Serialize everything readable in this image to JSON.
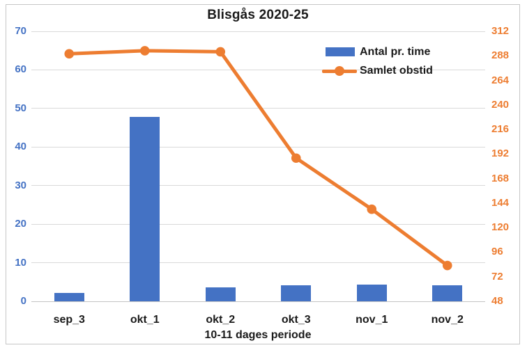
{
  "chart_data": {
    "type": "combo",
    "title": "Blisgås 2020-25",
    "xlabel": "10-11 dages periode",
    "categories": [
      "sep_3",
      "okt_1",
      "okt_2",
      "okt_3",
      "nov_1",
      "nov_2"
    ],
    "series": [
      {
        "name": "Antal pr. time",
        "type": "bar",
        "axis": "left",
        "color": "#4472C4",
        "values": [
          2.1,
          47.8,
          3.6,
          4.2,
          4.4,
          4.2
        ]
      },
      {
        "name": "Samlet obstid",
        "type": "line",
        "axis": "right",
        "color": "#ED7D31",
        "values": [
          290,
          293,
          292,
          188,
          138,
          83
        ]
      }
    ],
    "left_axis": {
      "min": 0,
      "max": 70,
      "step": 10,
      "tick_color": "#4472C4"
    },
    "right_axis": {
      "min": 48,
      "max": 312,
      "step": 24,
      "tick_color": "#ED7D31"
    },
    "grid": true,
    "gridline_color": "#D9D9D9",
    "legend_position": "upper-right"
  }
}
